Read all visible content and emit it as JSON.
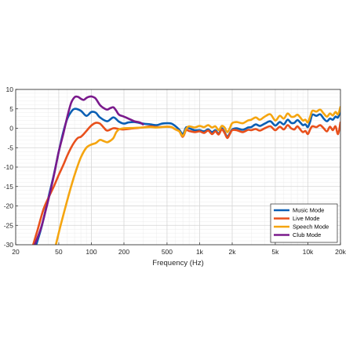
{
  "chart_data": {
    "type": "line",
    "xlabel": "Frequency (Hz)",
    "ylabel": "",
    "x_scale": "log",
    "xlim": [
      20,
      20000
    ],
    "ylim": [
      -30,
      10
    ],
    "grid": true,
    "legend_placement": "bottom-right",
    "x_ticks": [
      {
        "value": 20,
        "label": "20"
      },
      {
        "value": 50,
        "label": "50"
      },
      {
        "value": 100,
        "label": "100"
      },
      {
        "value": 200,
        "label": "200"
      },
      {
        "value": 500,
        "label": "500"
      },
      {
        "value": 1000,
        "label": "1k"
      },
      {
        "value": 2000,
        "label": "2k"
      },
      {
        "value": 5000,
        "label": "5k"
      },
      {
        "value": 10000,
        "label": "10k"
      },
      {
        "value": 20000,
        "label": "20k"
      }
    ],
    "y_ticks": [
      {
        "value": 10,
        "label": "10"
      },
      {
        "value": 5,
        "label": "5"
      },
      {
        "value": 0,
        "label": "0"
      },
      {
        "value": -5,
        "label": "-5"
      },
      {
        "value": -10,
        "label": "-10"
      },
      {
        "value": -15,
        "label": "-15"
      },
      {
        "value": -20,
        "label": "-20"
      },
      {
        "value": -25,
        "label": "-25"
      },
      {
        "value": -30,
        "label": "-30"
      }
    ],
    "series": [
      {
        "name": "Music Mode",
        "color": "#0a5fb4",
        "points": [
          [
            31,
            -30
          ],
          [
            35,
            -25
          ],
          [
            40,
            -18
          ],
          [
            45,
            -12
          ],
          [
            50,
            -6
          ],
          [
            55,
            -1
          ],
          [
            60,
            2.5
          ],
          [
            65,
            4.2
          ],
          [
            70,
            5.0
          ],
          [
            80,
            4.5
          ],
          [
            90,
            3.2
          ],
          [
            100,
            4.2
          ],
          [
            110,
            4.0
          ],
          [
            120,
            2.8
          ],
          [
            140,
            1.8
          ],
          [
            160,
            2.8
          ],
          [
            180,
            1.7
          ],
          [
            200,
            1.2
          ],
          [
            220,
            1.5
          ],
          [
            250,
            1.6
          ],
          [
            300,
            1.2
          ],
          [
            350,
            1.0
          ],
          [
            400,
            0.8
          ],
          [
            450,
            1.2
          ],
          [
            500,
            1.3
          ],
          [
            550,
            1.2
          ],
          [
            600,
            0.5
          ],
          [
            650,
            -0.4
          ],
          [
            700,
            -1.5
          ],
          [
            750,
            0.2
          ],
          [
            800,
            0.0
          ],
          [
            900,
            -0.5
          ],
          [
            1000,
            -0.5
          ],
          [
            1100,
            -0.8
          ],
          [
            1200,
            -0.3
          ],
          [
            1300,
            -1.0
          ],
          [
            1400,
            -0.5
          ],
          [
            1500,
            -1.4
          ],
          [
            1600,
            0.0
          ],
          [
            1700,
            -1.0
          ],
          [
            1800,
            -2.2
          ],
          [
            1900,
            -1.3
          ],
          [
            2000,
            -0.3
          ],
          [
            2200,
            0.0
          ],
          [
            2500,
            -0.4
          ],
          [
            2800,
            0.2
          ],
          [
            3000,
            0.3
          ],
          [
            3300,
            1.0
          ],
          [
            3600,
            0.6
          ],
          [
            4000,
            1.2
          ],
          [
            4500,
            1.8
          ],
          [
            5000,
            0.7
          ],
          [
            5500,
            1.6
          ],
          [
            6000,
            1.0
          ],
          [
            6500,
            2.2
          ],
          [
            7000,
            1.4
          ],
          [
            7500,
            1.4
          ],
          [
            8000,
            2.1
          ],
          [
            8500,
            1.5
          ],
          [
            9000,
            0.8
          ],
          [
            9500,
            1.0
          ],
          [
            10000,
            0.3
          ],
          [
            10500,
            1.7
          ],
          [
            11000,
            3.5
          ],
          [
            12000,
            3.2
          ],
          [
            13000,
            3.6
          ],
          [
            14000,
            2.5
          ],
          [
            15000,
            1.8
          ],
          [
            16000,
            2.5
          ],
          [
            17000,
            2.2
          ],
          [
            18000,
            3.0
          ],
          [
            19000,
            2.8
          ],
          [
            20000,
            4.6
          ]
        ]
      },
      {
        "name": "Live Mode",
        "color": "#e8501c",
        "points": [
          [
            29,
            -30
          ],
          [
            32,
            -26
          ],
          [
            36,
            -21
          ],
          [
            40,
            -18
          ],
          [
            45,
            -15
          ],
          [
            50,
            -12
          ],
          [
            55,
            -9.5
          ],
          [
            60,
            -7
          ],
          [
            65,
            -5
          ],
          [
            70,
            -3.5
          ],
          [
            75,
            -2.5
          ],
          [
            80,
            -2.2
          ],
          [
            85,
            -1.5
          ],
          [
            90,
            -0.7
          ],
          [
            100,
            0.7
          ],
          [
            110,
            1.4
          ],
          [
            120,
            1.2
          ],
          [
            130,
            0.2
          ],
          [
            140,
            -0.6
          ],
          [
            160,
            0.0
          ],
          [
            180,
            -0.2
          ],
          [
            200,
            -0.3
          ],
          [
            250,
            0.0
          ],
          [
            300,
            0.2
          ],
          [
            350,
            0.5
          ],
          [
            400,
            0.3
          ],
          [
            500,
            0.4
          ],
          [
            550,
            0.3
          ],
          [
            600,
            -0.3
          ],
          [
            650,
            -0.8
          ],
          [
            700,
            -2.2
          ],
          [
            750,
            -0.5
          ],
          [
            800,
            -0.7
          ],
          [
            900,
            -1.0
          ],
          [
            1000,
            -0.8
          ],
          [
            1100,
            -1.2
          ],
          [
            1200,
            -0.6
          ],
          [
            1300,
            -1.5
          ],
          [
            1400,
            -0.8
          ],
          [
            1500,
            -1.6
          ],
          [
            1600,
            -0.3
          ],
          [
            1700,
            -1.2
          ],
          [
            1800,
            -2.5
          ],
          [
            1900,
            -1.5
          ],
          [
            2000,
            -0.5
          ],
          [
            2200,
            -0.5
          ],
          [
            2500,
            -1.0
          ],
          [
            2800,
            -0.4
          ],
          [
            3000,
            -0.5
          ],
          [
            3300,
            -0.2
          ],
          [
            3600,
            -0.6
          ],
          [
            4000,
            0.0
          ],
          [
            4500,
            0.5
          ],
          [
            5000,
            -0.5
          ],
          [
            5500,
            0.4
          ],
          [
            6000,
            -0.3
          ],
          [
            6500,
            0.8
          ],
          [
            7000,
            0.0
          ],
          [
            7500,
            -0.3
          ],
          [
            8000,
            0.5
          ],
          [
            8500,
            -0.3
          ],
          [
            9000,
            -1.0
          ],
          [
            9500,
            -0.7
          ],
          [
            10000,
            -1.5
          ],
          [
            10500,
            -0.3
          ],
          [
            11000,
            0.5
          ],
          [
            12000,
            0.3
          ],
          [
            13000,
            0.8
          ],
          [
            14000,
            0.0
          ],
          [
            15000,
            -0.8
          ],
          [
            16000,
            0.4
          ],
          [
            17000,
            -0.5
          ],
          [
            18000,
            0.5
          ],
          [
            19000,
            -1.5
          ],
          [
            20000,
            1.5
          ]
        ]
      },
      {
        "name": "Speech Mode",
        "color": "#f5a50f",
        "points": [
          [
            47,
            -30
          ],
          [
            52,
            -25
          ],
          [
            58,
            -20
          ],
          [
            65,
            -15
          ],
          [
            72,
            -11
          ],
          [
            80,
            -7.5
          ],
          [
            90,
            -5
          ],
          [
            100,
            -4.2
          ],
          [
            110,
            -3.8
          ],
          [
            120,
            -3.0
          ],
          [
            130,
            -3.3
          ],
          [
            140,
            -3.6
          ],
          [
            150,
            -3.2
          ],
          [
            160,
            -2.5
          ],
          [
            170,
            -1.0
          ],
          [
            180,
            -0.3
          ],
          [
            200,
            0.0
          ],
          [
            250,
            0.1
          ],
          [
            300,
            0.2
          ],
          [
            350,
            0.3
          ],
          [
            400,
            0.2
          ],
          [
            500,
            0.4
          ],
          [
            550,
            0.3
          ],
          [
            600,
            -0.3
          ],
          [
            650,
            -0.8
          ],
          [
            700,
            -2.0
          ],
          [
            750,
            -0.2
          ],
          [
            800,
            0.5
          ],
          [
            900,
            0.2
          ],
          [
            1000,
            0.6
          ],
          [
            1100,
            0.3
          ],
          [
            1200,
            0.8
          ],
          [
            1300,
            0.2
          ],
          [
            1400,
            0.5
          ],
          [
            1500,
            -0.5
          ],
          [
            1600,
            0.6
          ],
          [
            1700,
            0.2
          ],
          [
            1800,
            -1.0
          ],
          [
            1900,
            0.0
          ],
          [
            2000,
            1.3
          ],
          [
            2200,
            1.6
          ],
          [
            2500,
            1.3
          ],
          [
            2800,
            2.0
          ],
          [
            3000,
            2.2
          ],
          [
            3300,
            2.8
          ],
          [
            3600,
            2.2
          ],
          [
            4000,
            3.0
          ],
          [
            4500,
            3.6
          ],
          [
            5000,
            2.0
          ],
          [
            5500,
            3.2
          ],
          [
            6000,
            2.5
          ],
          [
            6500,
            3.8
          ],
          [
            7000,
            3.0
          ],
          [
            7500,
            3.0
          ],
          [
            8000,
            3.5
          ],
          [
            8500,
            2.8
          ],
          [
            9000,
            2.0
          ],
          [
            9500,
            2.2
          ],
          [
            10000,
            1.5
          ],
          [
            10500,
            3.0
          ],
          [
            11000,
            4.5
          ],
          [
            12000,
            4.3
          ],
          [
            13000,
            4.8
          ],
          [
            14000,
            3.8
          ],
          [
            15000,
            3.0
          ],
          [
            16000,
            3.8
          ],
          [
            17000,
            3.3
          ],
          [
            18000,
            4.2
          ],
          [
            19000,
            3.6
          ],
          [
            20000,
            5.5
          ]
        ]
      },
      {
        "name": "Club Mode",
        "color": "#7a1a8c",
        "points": [
          [
            30,
            -30
          ],
          [
            34,
            -26
          ],
          [
            38,
            -21
          ],
          [
            42,
            -16
          ],
          [
            46,
            -11
          ],
          [
            50,
            -6
          ],
          [
            55,
            -1.5
          ],
          [
            60,
            3
          ],
          [
            65,
            6.5
          ],
          [
            70,
            8.0
          ],
          [
            75,
            8.1
          ],
          [
            80,
            7.6
          ],
          [
            85,
            7.3
          ],
          [
            90,
            7.8
          ],
          [
            95,
            8.1
          ],
          [
            100,
            8.2
          ],
          [
            105,
            8.0
          ],
          [
            110,
            7.6
          ],
          [
            120,
            6.0
          ],
          [
            130,
            5.2
          ],
          [
            140,
            4.8
          ],
          [
            150,
            5.2
          ],
          [
            160,
            5.4
          ],
          [
            170,
            4.5
          ],
          [
            180,
            3.5
          ],
          [
            200,
            3.0
          ],
          [
            220,
            2.5
          ],
          [
            250,
            1.8
          ],
          [
            280,
            1.5
          ],
          [
            300,
            1.0
          ]
        ]
      }
    ]
  }
}
